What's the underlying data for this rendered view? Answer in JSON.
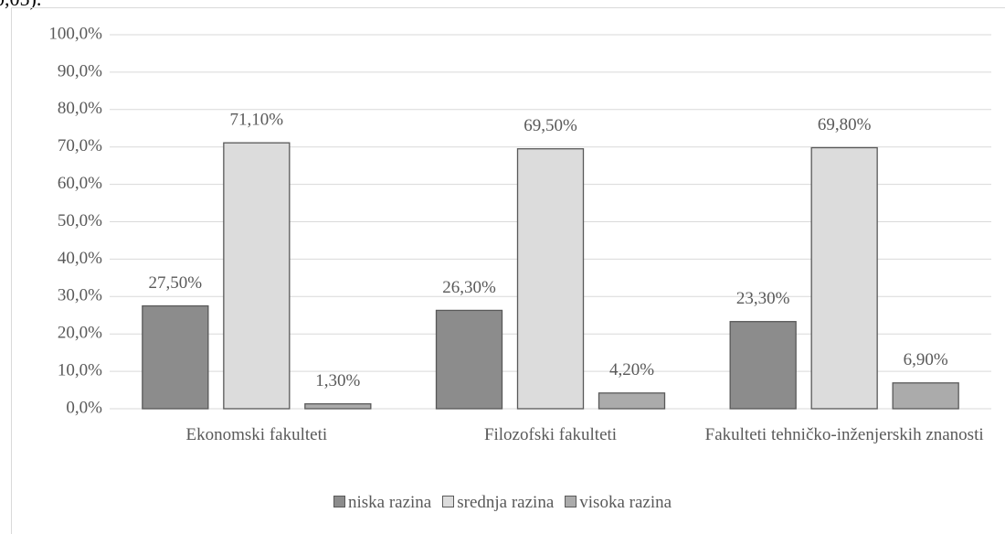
{
  "chart_data": {
    "type": "bar",
    "annotation": "0,05).",
    "categories": [
      "Ekonomski fakulteti",
      "Filozofski fakulteti",
      "Fakulteti tehničko-inženjerskih znanosti"
    ],
    "series": [
      {
        "name": "niska razina",
        "color": "#8c8c8c",
        "values": [
          27.5,
          26.3,
          23.3
        ],
        "value_labels": [
          "27,50%",
          "26,30%",
          "23,30%"
        ]
      },
      {
        "name": "srednja razina",
        "color": "#dcdcdc",
        "values": [
          71.1,
          69.5,
          69.8
        ],
        "value_labels": [
          "71,10%",
          "69,50%",
          "69,80%"
        ]
      },
      {
        "name": "visoka razina",
        "color": "#ababab",
        "values": [
          1.3,
          4.2,
          6.9
        ],
        "value_labels": [
          "1,30%",
          "4,20%",
          "6,90%"
        ]
      }
    ],
    "ylim": [
      0,
      100
    ],
    "yticks": [
      {
        "value": 0,
        "label": "0,0%"
      },
      {
        "value": 10,
        "label": "10,0%"
      },
      {
        "value": 20,
        "label": "20,0%"
      },
      {
        "value": 30,
        "label": "30,0%"
      },
      {
        "value": 40,
        "label": "40,0%"
      },
      {
        "value": 50,
        "label": "50,0%"
      },
      {
        "value": 60,
        "label": "60,0%"
      },
      {
        "value": 70,
        "label": "70,0%"
      },
      {
        "value": 80,
        "label": "80,0%"
      },
      {
        "value": 90,
        "label": "90,0%"
      },
      {
        "value": 100,
        "label": "100,0%"
      }
    ],
    "grid": true
  }
}
